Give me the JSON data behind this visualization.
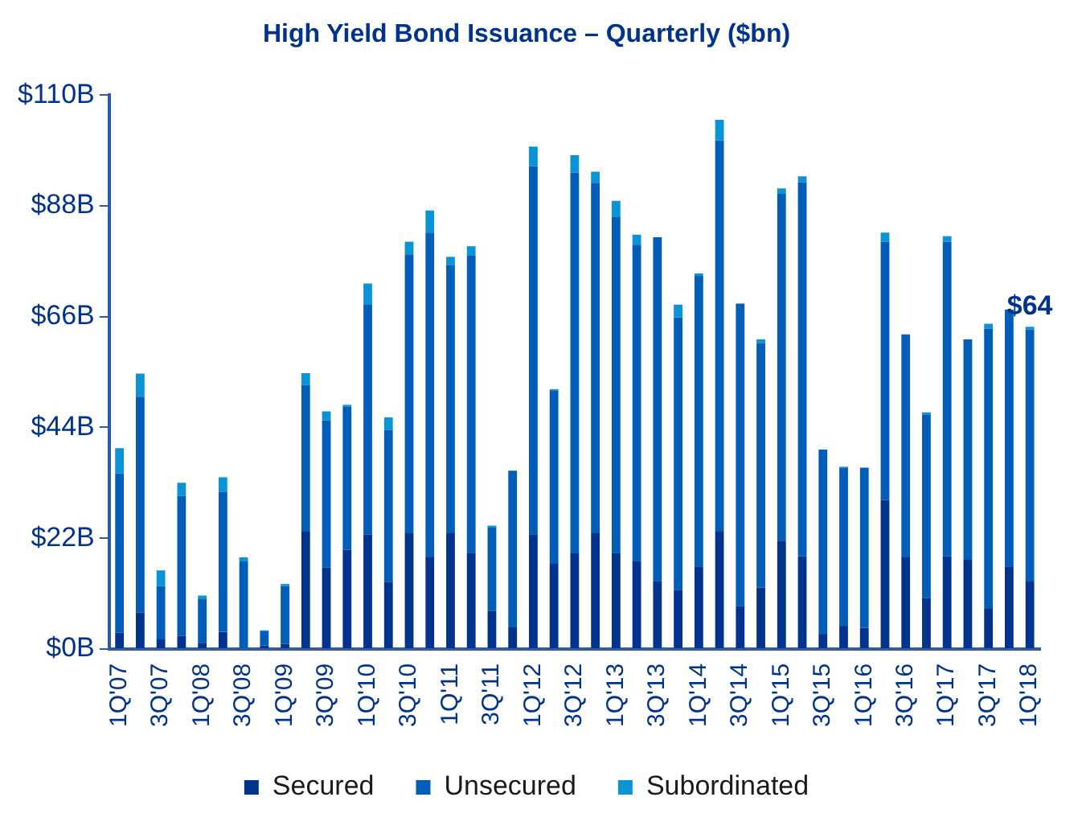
{
  "chart_data": {
    "type": "bar",
    "title": "High Yield Bond Issuance – Quarterly ($bn)",
    "stacked": true,
    "grid": false,
    "legend": "bottom",
    "categories": [
      "1Q'07",
      null,
      "3Q'07",
      null,
      "1Q'08",
      null,
      "3Q'08",
      null,
      "1Q'09",
      null,
      "3Q'09",
      null,
      "1Q'10",
      null,
      "3Q'10",
      null,
      "1Q'11",
      null,
      "3Q'11",
      null,
      "1Q'12",
      null,
      "3Q'12",
      null,
      "1Q'13",
      null,
      "3Q'13",
      null,
      "1Q'14",
      null,
      "3Q'14",
      null,
      "1Q'15",
      null,
      "3Q'15",
      null,
      "1Q'16",
      null,
      "3Q'16",
      null,
      "1Q'17",
      null,
      "3Q'17",
      null,
      "1Q'18"
    ],
    "series": [
      {
        "name": "Secured",
        "color": "#00338d",
        "values": [
          3.2,
          7.2,
          1.9,
          2.6,
          1.2,
          3.4,
          null,
          0.7,
          1.0,
          23.3,
          16.2,
          19.7,
          22.7,
          13.3,
          23.0,
          18.2,
          23.0,
          19.1,
          7.6,
          4.3,
          22.8,
          16.9,
          19.0,
          23.0,
          19.1,
          17.5,
          13.5,
          11.7,
          16.4,
          23.3,
          8.5,
          12.2,
          21.5,
          18.4,
          3.0,
          4.6,
          4.2,
          29.6,
          18.2,
          10.1,
          18.4,
          17.7,
          8.1,
          16.4,
          13.4
        ]
      },
      {
        "name": "Unsecured",
        "color": "#005eb8",
        "values": [
          31.7,
          42.9,
          10.6,
          27.8,
          8.7,
          27.8,
          17.4,
          2.8,
          11.5,
          29.1,
          29.2,
          28.4,
          45.8,
          30.2,
          55.4,
          64.5,
          53.2,
          59.0,
          16.5,
          31.1,
          73.1,
          34.5,
          75.6,
          69.6,
          66.7,
          62.8,
          68.3,
          54.2,
          57.7,
          77.7,
          60.1,
          48.5,
          68.9,
          74.3,
          36.6,
          31.4,
          31.8,
          51.3,
          44.3,
          36.5,
          62.5,
          43.8,
          55.5,
          51.0,
          50.1
        ]
      },
      {
        "name": "Subordinated",
        "color": "#0a94d6",
        "values": [
          5.0,
          4.6,
          3.1,
          2.6,
          0.7,
          2.9,
          0.8,
          0.2,
          0.4,
          2.4,
          1.8,
          0.4,
          4.1,
          2.5,
          2.5,
          4.4,
          1.7,
          1.9,
          0.4,
          0,
          3.9,
          0.2,
          3.5,
          2.2,
          3.2,
          2.0,
          0,
          2.5,
          0.5,
          4.1,
          0,
          0.8,
          1.1,
          1.2,
          0,
          0.2,
          0,
          1.8,
          0,
          0.4,
          1.1,
          0,
          1.0,
          0,
          0.5
        ]
      }
    ],
    "ylim": [
      0,
      110
    ],
    "yticks": [
      {
        "value": 0,
        "label": "$0B"
      },
      {
        "value": 22,
        "label": "$22B"
      },
      {
        "value": 44,
        "label": "$44B"
      },
      {
        "value": 66,
        "label": "$66B"
      },
      {
        "value": 88,
        "label": "$88B"
      },
      {
        "value": 110,
        "label": "$110B"
      }
    ],
    "annotations": [
      {
        "text": "$64",
        "x": "1Q'18",
        "y": 64
      }
    ]
  }
}
